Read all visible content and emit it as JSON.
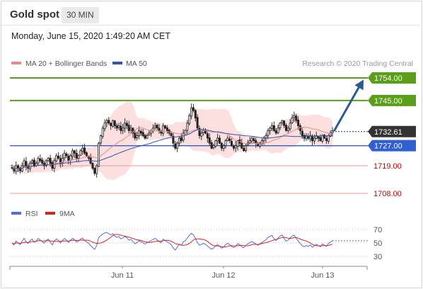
{
  "header": {
    "title": "Gold spot",
    "timeframe": "30 MIN",
    "timestamp": "Monday, June 15, 2020 1:49:20 AM CET"
  },
  "legend": {
    "ma20_bb": "MA 20 + Bollinger Bands",
    "ma50": "MA 50",
    "credit": "Research © 2020 Trading Central"
  },
  "rsi_legend": {
    "rsi": "RSI",
    "ma9": "9MA"
  },
  "colors": {
    "green_level": "#5a9e1a",
    "blue_level": "#2f5fd0",
    "red_level": "#e89a9a",
    "red_text": "#cc0000",
    "arrow": "#2b5b94",
    "bollinger_fill": "#fbd9d9",
    "ma20": "#e98a8a",
    "ma50": "#3355aa",
    "price_tag": "#333333",
    "rsi": "#4f6fdc",
    "rsi_ma": "#dd2222"
  },
  "chart_data": [
    {
      "type": "candlestick",
      "title": "Gold spot",
      "x_tick_labels": [
        "Jun 11",
        "Jun 12",
        "Jun 13"
      ],
      "price_levels": [
        {
          "value": 1754.0,
          "label": "1754.00",
          "kind": "resistance"
        },
        {
          "value": 1745.0,
          "label": "1745.00",
          "kind": "resistance"
        },
        {
          "value": 1727.0,
          "label": "1727.00",
          "kind": "pivot"
        },
        {
          "value": 1719.0,
          "label": "1719.00",
          "kind": "support"
        },
        {
          "value": 1708.0,
          "label": "1708.00",
          "kind": "support"
        }
      ],
      "last_price": {
        "value": 1732.61,
        "label": "1732.61"
      },
      "ylim": [
        1705,
        1758
      ],
      "series": [
        {
          "name": "MA 20 + Bollinger Bands"
        },
        {
          "name": "MA 50"
        }
      ],
      "close": [
        1718,
        1717,
        1719,
        1718,
        1717,
        1719,
        1721,
        1719,
        1718,
        1720,
        1721,
        1719,
        1720,
        1722,
        1721,
        1720,
        1719,
        1721,
        1722,
        1720,
        1718,
        1721,
        1723,
        1722,
        1720,
        1722,
        1724,
        1723,
        1721,
        1723,
        1725,
        1724,
        1722,
        1723,
        1725,
        1726,
        1724,
        1723,
        1722,
        1720,
        1718,
        1716,
        1719,
        1728,
        1731,
        1734,
        1736,
        1737,
        1736,
        1735,
        1737,
        1735,
        1734,
        1735,
        1733,
        1734,
        1736,
        1735,
        1733,
        1734,
        1732,
        1730,
        1731,
        1733,
        1732,
        1731,
        1730,
        1731,
        1732,
        1733,
        1734,
        1735,
        1734,
        1733,
        1732,
        1735,
        1734,
        1733,
        1732,
        1731,
        1728,
        1726,
        1728,
        1730,
        1729,
        1732,
        1733,
        1736,
        1739,
        1742,
        1741,
        1738,
        1734,
        1731,
        1732,
        1733,
        1732,
        1730,
        1728,
        1726,
        1727,
        1729,
        1730,
        1728,
        1726,
        1727,
        1729,
        1730,
        1729,
        1727,
        1726,
        1727,
        1729,
        1728,
        1726,
        1725,
        1727,
        1728,
        1729,
        1730,
        1729,
        1728,
        1727,
        1728,
        1729,
        1730,
        1731,
        1733,
        1734,
        1735,
        1733,
        1732,
        1734,
        1736,
        1737,
        1735,
        1733,
        1734,
        1736,
        1738,
        1739,
        1737,
        1735,
        1733,
        1731,
        1730,
        1731,
        1730,
        1731,
        1729,
        1730,
        1731,
        1730,
        1729,
        1731,
        1730,
        1729,
        1731,
        1732,
        1733
      ]
    },
    {
      "type": "line",
      "title": "RSI",
      "yticks": [
        70,
        50,
        30
      ],
      "ylim": [
        25,
        75
      ],
      "series": [
        {
          "name": "RSI"
        },
        {
          "name": "9MA"
        }
      ]
    }
  ]
}
